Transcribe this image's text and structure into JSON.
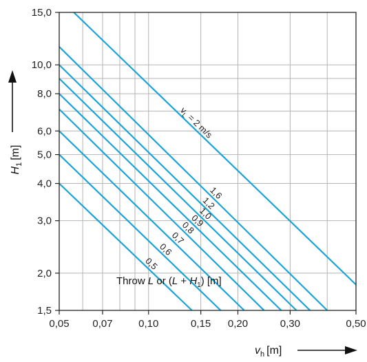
{
  "chart_data": {
    "type": "line",
    "x_scale": "log",
    "y_scale": "log",
    "xlim": [
      0.05,
      0.5
    ],
    "ylim": [
      1.5,
      15.0
    ],
    "grid": true,
    "x_ticks": [
      0.05,
      0.07,
      0.1,
      0.15,
      0.2,
      0.3,
      0.5
    ],
    "x_tick_labels": [
      "0,05",
      "0,07",
      "0,10",
      "0,15",
      "0,20",
      "0,30",
      "0,50"
    ],
    "y_ticks": [
      1.5,
      2.0,
      3.0,
      4.0,
      5.0,
      6.0,
      8.0,
      10.0,
      15.0
    ],
    "y_tick_labels": [
      "1,5",
      "2,0",
      "3,0",
      "4,0",
      "5,0",
      "6,0",
      "8,0",
      "10,0",
      "15,0"
    ],
    "xlabel": {
      "var": "v",
      "sub": "h",
      "unit": "[m]"
    },
    "ylabel": {
      "var": "H",
      "sub": "1",
      "unit": "[m]"
    },
    "annotation": {
      "text_pre": "Throw ",
      "L": "L",
      "text_mid": " or (",
      "L2": "L",
      "plus": " + ",
      "H": "H",
      "H_sub": "1",
      "text_post": ") [m]"
    },
    "series_label_prefix": "v",
    "series_label_prefix_sub": "L",
    "series": [
      {
        "name": "vL = 2 m/s",
        "label": " = 2 m/s",
        "points": [
          [
            0.056,
            15.0
          ],
          [
            0.5,
            1.83
          ]
        ]
      },
      {
        "name": "1,6",
        "label": "1,6",
        "points": [
          [
            0.05,
            11.5
          ],
          [
            0.4,
            1.5
          ]
        ]
      },
      {
        "name": "1,2",
        "label": "1,2",
        "points": [
          [
            0.05,
            10.0
          ],
          [
            0.35,
            1.5
          ]
        ]
      },
      {
        "name": "1,0",
        "label": "1,0",
        "points": [
          [
            0.05,
            9.0
          ],
          [
            0.315,
            1.5
          ]
        ]
      },
      {
        "name": "0,9",
        "label": "0,9",
        "points": [
          [
            0.05,
            8.0
          ],
          [
            0.28,
            1.5
          ]
        ]
      },
      {
        "name": "0,8",
        "label": "0,8",
        "points": [
          [
            0.05,
            7.1
          ],
          [
            0.245,
            1.5
          ]
        ]
      },
      {
        "name": "0,7",
        "label": "0,7",
        "points": [
          [
            0.05,
            6.0
          ],
          [
            0.21,
            1.5
          ]
        ]
      },
      {
        "name": "0,6",
        "label": "0,6",
        "points": [
          [
            0.05,
            5.0
          ],
          [
            0.175,
            1.5
          ]
        ]
      },
      {
        "name": "0,5",
        "label": "0,5",
        "points": [
          [
            0.05,
            4.0
          ],
          [
            0.14,
            1.5
          ]
        ]
      }
    ],
    "series_color": "#1ba3d8"
  }
}
